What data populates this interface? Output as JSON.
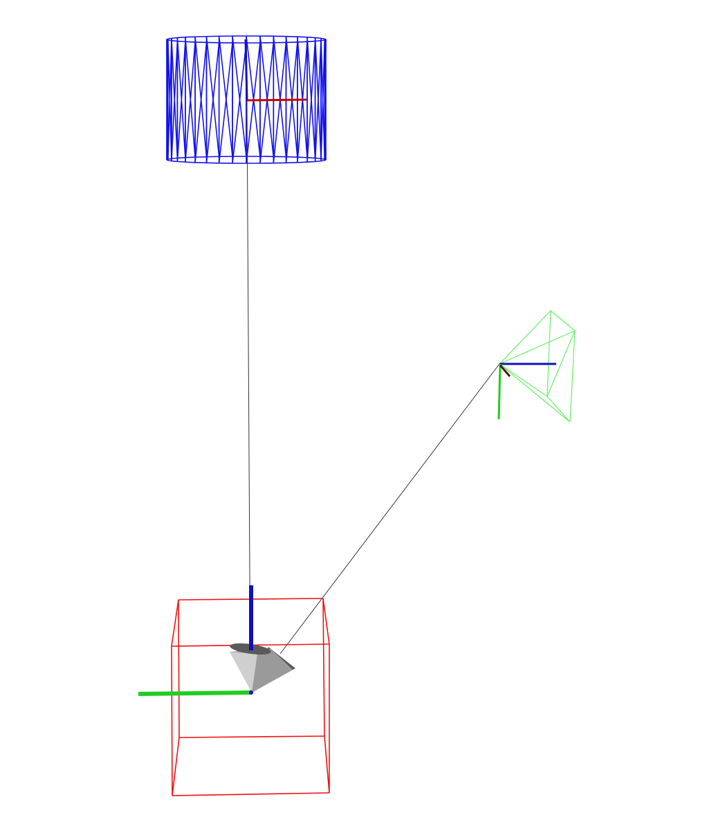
{
  "scene": {
    "background": "#ffffff",
    "colors": {
      "cylinder_wire": "#1010ee",
      "box_wire": "#ee1010",
      "camera_frustum": "#66ee66",
      "link_line": "#333333",
      "axis_x": "#cc0000",
      "axis_y": "#22cc22",
      "axis_z": "#1010bb",
      "cone_light": "#cfcfcf",
      "cone_mid": "#9a9a9a",
      "cone_dark": "#5a5a5a"
    },
    "objects": [
      {
        "name": "cylinder-wireframe",
        "shape": "cylinder",
        "color": "blue"
      },
      {
        "name": "box-wireframe",
        "shape": "box",
        "color": "red"
      },
      {
        "name": "camera-frustum",
        "shape": "frustum",
        "color": "green"
      },
      {
        "name": "cone",
        "shape": "cone",
        "color": "gray"
      }
    ],
    "frames": [
      {
        "name": "world-frame",
        "axes": [
          "x",
          "y",
          "z"
        ]
      },
      {
        "name": "cylinder-frame",
        "axes": [
          "x",
          "z"
        ]
      },
      {
        "name": "camera-frame",
        "axes": [
          "x",
          "y",
          "z"
        ]
      }
    ]
  }
}
